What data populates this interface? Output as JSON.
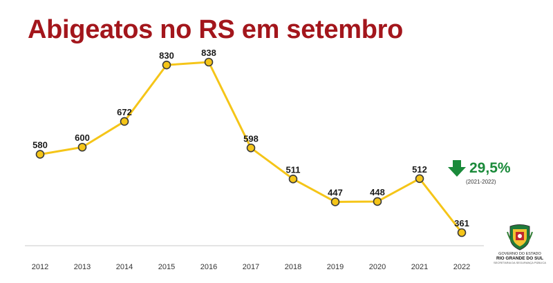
{
  "title": "Abigeatos no RS em setembro",
  "chart_data": {
    "type": "line",
    "categories": [
      "2012",
      "2013",
      "2014",
      "2015",
      "2016",
      "2017",
      "2018",
      "2019",
      "2020",
      "2021",
      "2022"
    ],
    "values": [
      580,
      600,
      672,
      830,
      838,
      598,
      511,
      447,
      448,
      512,
      361
    ],
    "data_labels": [
      "580",
      "600",
      "672",
      "830",
      "838",
      "598",
      "511",
      "447",
      "448",
      "512",
      "361"
    ],
    "ylim": [
      300,
      880
    ],
    "grid": false,
    "legend": "none",
    "line_color": "#f5c518",
    "marker_fill": "#f5c518",
    "marker_stroke": "#3a3a3a"
  },
  "change": {
    "value": "29,5%",
    "period": "(2021-2022)",
    "direction": "down",
    "color": "#1a8a3a"
  },
  "logo": {
    "line1": "GOVERNO DO ESTADO",
    "line2": "RIO GRANDE DO SUL",
    "line3": "SECRETARIA DA SEGURANÇA PÚBLICA"
  },
  "colors": {
    "title": "#a3161c",
    "axis": "#c8c8c8"
  }
}
